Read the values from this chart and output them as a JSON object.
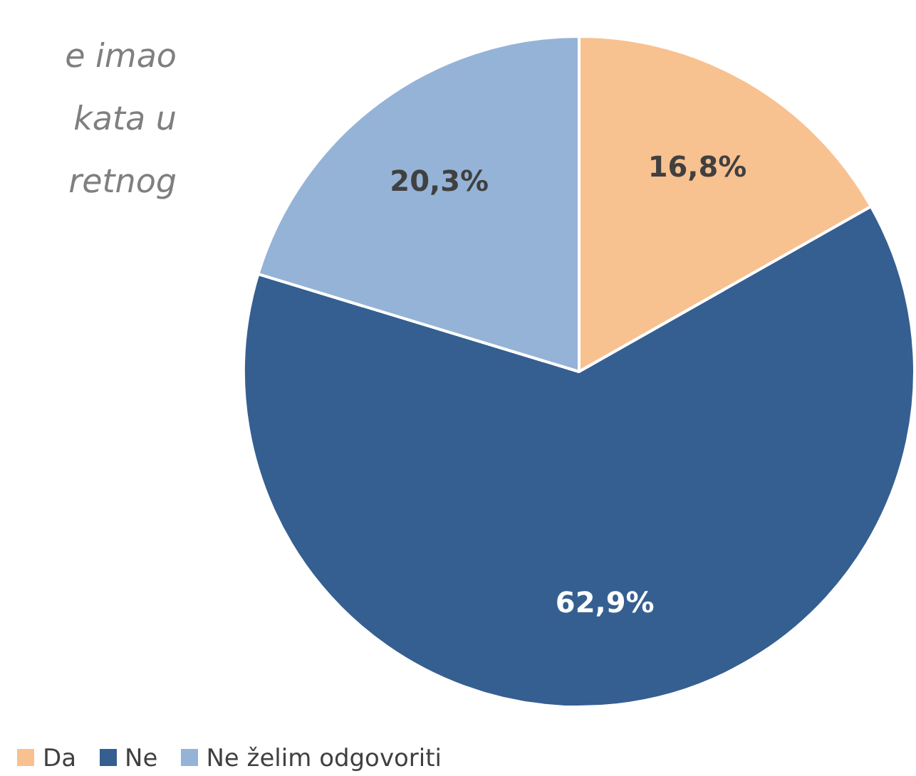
{
  "chart_data": {
    "type": "pie",
    "title": "e imao\nkata u\nretnog",
    "categories": [
      "Da",
      "Ne",
      "Ne želim odgovoriti"
    ],
    "values": [
      16.8,
      62.9,
      20.3
    ],
    "colors": [
      "#f8c190",
      "#355f91",
      "#95b3d7"
    ],
    "value_labels": [
      "16,8%",
      "62,9%",
      "20,3%"
    ],
    "legend": "bottom left"
  }
}
